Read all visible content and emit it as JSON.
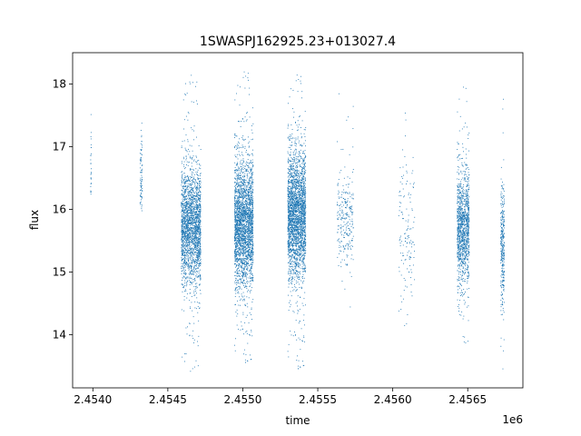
{
  "chart_data": {
    "type": "scatter",
    "title": "1SWASPJ162925.23+013027.4",
    "xlabel": "time",
    "ylabel": "flux",
    "x_offset_label": "1e6",
    "xlim": [
      2453865,
      2456868
    ],
    "ylim": [
      13.15,
      18.5
    ],
    "x_ticks": [
      2454000,
      2454500,
      2455000,
      2455500,
      2456000,
      2456500
    ],
    "x_tick_labels": [
      "2.4540",
      "2.4545",
      "2.4550",
      "2.4555",
      "2.4560",
      "2.4565"
    ],
    "y_ticks": [
      14,
      15,
      16,
      17,
      18
    ],
    "y_tick_labels": [
      "14",
      "15",
      "16",
      "17",
      "18"
    ],
    "grid": false,
    "marker_color": "#1f77b4",
    "observing_seasons": [
      {
        "x_start": 2453985,
        "x_end": 2453990,
        "y_center": 16.6,
        "y_spread": 0.45,
        "y_min": 16.1,
        "y_max": 17.7,
        "count": 30
      },
      {
        "x_start": 2454315,
        "x_end": 2454330,
        "y_center": 16.5,
        "y_spread": 0.35,
        "y_min": 15.9,
        "y_max": 17.5,
        "count": 80
      },
      {
        "x_start": 2454590,
        "x_end": 2454720,
        "y_center": 15.7,
        "y_spread": 0.45,
        "y_min": 13.4,
        "y_max": 18.15,
        "count": 2200
      },
      {
        "x_start": 2454945,
        "x_end": 2455070,
        "y_center": 15.75,
        "y_spread": 0.5,
        "y_min": 13.5,
        "y_max": 18.25,
        "count": 2600
      },
      {
        "x_start": 2455300,
        "x_end": 2455420,
        "y_center": 15.9,
        "y_spread": 0.5,
        "y_min": 13.4,
        "y_max": 18.2,
        "count": 2600
      },
      {
        "x_start": 2455630,
        "x_end": 2455740,
        "y_center": 15.8,
        "y_spread": 0.35,
        "y_min": 14.0,
        "y_max": 18.2,
        "count": 260
      },
      {
        "x_start": 2456040,
        "x_end": 2456150,
        "y_center": 15.6,
        "y_spread": 0.6,
        "y_min": 14.1,
        "y_max": 18.1,
        "count": 140
      },
      {
        "x_start": 2456430,
        "x_end": 2456510,
        "y_center": 15.7,
        "y_spread": 0.45,
        "y_min": 13.8,
        "y_max": 18.0,
        "count": 1200
      },
      {
        "x_start": 2456720,
        "x_end": 2456745,
        "y_center": 15.4,
        "y_spread": 0.5,
        "y_min": 13.4,
        "y_max": 17.9,
        "count": 320
      }
    ]
  }
}
